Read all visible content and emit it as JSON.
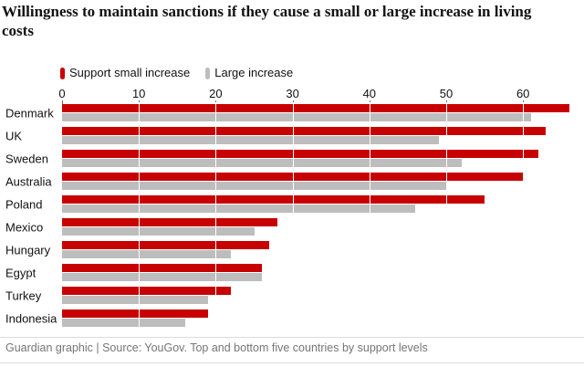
{
  "title": "Willingness to maintain sanctions if they cause a small or large increase in living costs",
  "legend": [
    {
      "label": "Support small increase",
      "color": "#c70000"
    },
    {
      "label": "Large increase",
      "color": "#bdbdbd"
    }
  ],
  "footer": "Guardian graphic | Source: YouGov. Top and bottom five countries by support levels",
  "colors": {
    "support_small": "#c70000",
    "large": "#bdbdbd",
    "text": "#121212",
    "muted_text": "#767676",
    "rule": "#dcdcdc",
    "tick": "#707070",
    "gridline_over_bars": "#ffffff"
  },
  "chart_data": {
    "type": "bar",
    "orientation": "horizontal",
    "title": "Willingness to maintain sanctions if they cause a small or large increase in living costs",
    "categories": [
      "Denmark",
      "UK",
      "Sweden",
      "Australia",
      "Poland",
      "Mexico",
      "Hungary",
      "Egypt",
      "Turkey",
      "Indonesia"
    ],
    "series": [
      {
        "name": "Support small increase",
        "color": "#c70000",
        "values": [
          66,
          63,
          62,
          60,
          55,
          28,
          27,
          26,
          22,
          19
        ]
      },
      {
        "name": "Large increase",
        "color": "#bdbdbd",
        "values": [
          61,
          49,
          52,
          50,
          46,
          25,
          22,
          26,
          19,
          16
        ]
      }
    ],
    "xlabel": "",
    "ylabel": "",
    "xlim": [
      0,
      67
    ],
    "xticks": [
      0,
      10,
      20,
      30,
      40,
      50,
      60
    ],
    "grid": "vertical-white-over-bars",
    "legend_position": "top-left",
    "source_note": "Guardian graphic | Source: YouGov. Top and bottom five countries by support levels"
  }
}
